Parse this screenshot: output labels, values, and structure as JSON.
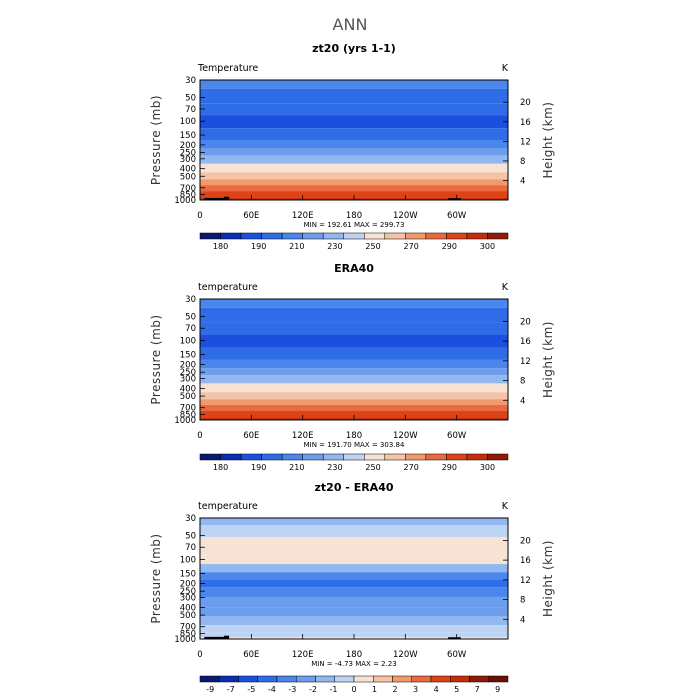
{
  "main_title": "ANN",
  "chart_data": [
    {
      "type": "heatmap",
      "title": "zt20 (yrs 1-1)",
      "left_label": "Temperature",
      "right_label": "K",
      "ylabel": "Pressure (mb)",
      "y2label": "Height (km)",
      "x_ticks": [
        "0",
        "60E",
        "120E",
        "180",
        "120W",
        "60W"
      ],
      "y_ticks": [
        "30",
        "50",
        "70",
        "100",
        "150",
        "200",
        "250",
        "300",
        "400",
        "500",
        "700",
        "850",
        "1000"
      ],
      "y2_ticks": [
        "20",
        "16",
        "12",
        "8",
        "4"
      ],
      "stats": "MIN = 192.61   MAX = 299.73",
      "levels": [
        "180",
        "190",
        "210",
        "230",
        "250",
        "270",
        "290",
        "300"
      ],
      "bands": [
        {
          "p": 30,
          "level": 4
        },
        {
          "p": 50,
          "level": 3
        },
        {
          "p": 70,
          "level": 3
        },
        {
          "p": 100,
          "level": 2
        },
        {
          "p": 150,
          "level": 3
        },
        {
          "p": 200,
          "level": 4
        },
        {
          "p": 250,
          "level": 5
        },
        {
          "p": 300,
          "level": 6
        },
        {
          "p": 400,
          "level": 8
        },
        {
          "p": 500,
          "level": 9
        },
        {
          "p": 600,
          "level": 10
        },
        {
          "p": 700,
          "level": 11
        },
        {
          "p": 850,
          "level": 12
        },
        {
          "p": 1000,
          "level": 13
        }
      ],
      "terrain": [
        {
          "lon_start": 5,
          "lon_end": 33,
          "p_top": 940
        },
        {
          "lon_start": 28,
          "lon_end": 34,
          "p_top": 910
        },
        {
          "lon_start": 290,
          "lon_end": 305,
          "p_top": 950
        }
      ]
    },
    {
      "type": "heatmap",
      "title": "ERA40",
      "left_label": "temperature",
      "right_label": "K",
      "ylabel": "Pressure (mb)",
      "y2label": "Height (km)",
      "x_ticks": [
        "0",
        "60E",
        "120E",
        "180",
        "120W",
        "60W"
      ],
      "y_ticks": [
        "30",
        "50",
        "70",
        "100",
        "150",
        "200",
        "250",
        "300",
        "400",
        "500",
        "700",
        "850",
        "1000"
      ],
      "y2_ticks": [
        "20",
        "16",
        "12",
        "8",
        "4"
      ],
      "stats": "MIN = 191.70   MAX = 303.84",
      "levels": [
        "180",
        "190",
        "210",
        "230",
        "250",
        "270",
        "290",
        "300"
      ],
      "bands": [
        {
          "p": 30,
          "level": 4
        },
        {
          "p": 50,
          "level": 3
        },
        {
          "p": 70,
          "level": 3
        },
        {
          "p": 100,
          "level": 2
        },
        {
          "p": 150,
          "level": 3
        },
        {
          "p": 200,
          "level": 4
        },
        {
          "p": 250,
          "level": 5
        },
        {
          "p": 300,
          "level": 6
        },
        {
          "p": 400,
          "level": 8
        },
        {
          "p": 500,
          "level": 9
        },
        {
          "p": 600,
          "level": 10
        },
        {
          "p": 700,
          "level": 11
        },
        {
          "p": 850,
          "level": 12
        },
        {
          "p": 1000,
          "level": 13
        }
      ],
      "terrain": []
    },
    {
      "type": "heatmap",
      "title": "zt20 - ERA40",
      "left_label": "temperature",
      "right_label": "K",
      "ylabel": "Pressure (mb)",
      "y2label": "Height (km)",
      "x_ticks": [
        "0",
        "60E",
        "120E",
        "180",
        "120W",
        "60W"
      ],
      "y_ticks": [
        "30",
        "50",
        "70",
        "100",
        "150",
        "200",
        "250",
        "300",
        "400",
        "500",
        "700",
        "850",
        "1000"
      ],
      "y2_ticks": [
        "20",
        "16",
        "12",
        "8",
        "4"
      ],
      "stats": "MIN =   -4.73   MAX =    2.23",
      "levels": [
        "-9",
        "-7",
        "-5",
        "-4",
        "-3",
        "-2",
        "-1",
        "0",
        "1",
        "2",
        "3",
        "4",
        "5",
        "7",
        "9"
      ],
      "bands": [
        {
          "p": 30,
          "level": 6
        },
        {
          "p": 45,
          "level": 7
        },
        {
          "p": 60,
          "level": 8
        },
        {
          "p": 80,
          "level": 8
        },
        {
          "p": 100,
          "level": 8
        },
        {
          "p": 130,
          "level": 6
        },
        {
          "p": 160,
          "level": 4
        },
        {
          "p": 200,
          "level": 3
        },
        {
          "p": 250,
          "level": 4
        },
        {
          "p": 350,
          "level": 5
        },
        {
          "p": 450,
          "level": 5
        },
        {
          "p": 600,
          "level": 6
        },
        {
          "p": 750,
          "level": 7
        },
        {
          "p": 900,
          "level": 7
        },
        {
          "p": 1000,
          "level": 8
        }
      ],
      "terrain": [
        {
          "lon_start": 5,
          "lon_end": 33,
          "p_top": 940
        },
        {
          "lon_start": 28,
          "lon_end": 34,
          "p_top": 910
        },
        {
          "lon_start": 290,
          "lon_end": 305,
          "p_top": 950
        }
      ]
    }
  ]
}
